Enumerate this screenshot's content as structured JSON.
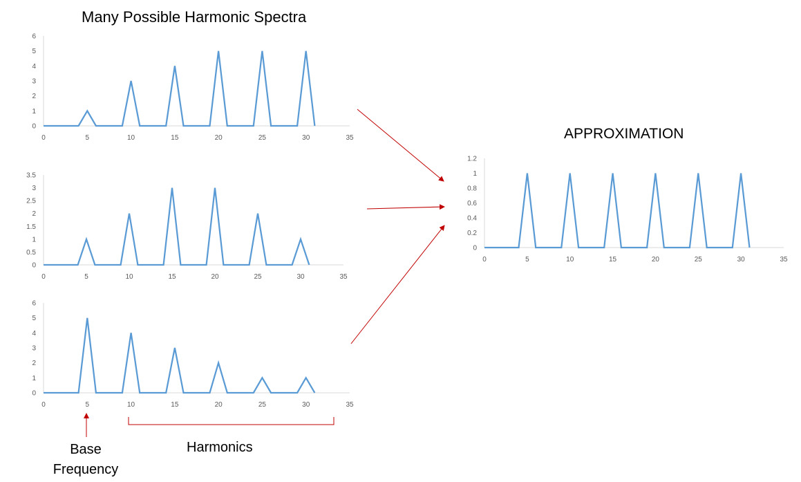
{
  "title": "Many Possible Harmonic Spectra",
  "approx_title": "APPROXIMATION",
  "annotations": {
    "base_frequency": "Base Frequency",
    "harmonics": "Harmonics"
  },
  "colors": {
    "line": "#5B9BD5",
    "axis": "#D9D9D9",
    "arrow": "#C00000",
    "text": "#595959"
  },
  "chart_data": [
    {
      "type": "line",
      "title": "",
      "xlim": [
        0,
        35
      ],
      "ylim": [
        0,
        6
      ],
      "xticks": [
        0,
        5,
        10,
        15,
        20,
        25,
        30,
        35
      ],
      "yticks": [
        0,
        1,
        2,
        3,
        4,
        5,
        6
      ],
      "x": [
        0,
        4,
        5,
        6,
        9,
        10,
        11,
        14,
        15,
        16,
        19,
        20,
        21,
        24,
        25,
        26,
        29,
        30,
        31
      ],
      "series": [
        {
          "values": [
            0,
            0,
            1,
            0,
            0,
            3,
            0,
            0,
            4,
            0,
            0,
            5,
            0,
            0,
            5,
            0,
            0,
            5,
            0
          ]
        }
      ]
    },
    {
      "type": "line",
      "title": "",
      "xlim": [
        0,
        35
      ],
      "ylim": [
        0,
        3.5
      ],
      "xticks": [
        0,
        5,
        10,
        15,
        20,
        25,
        30,
        35
      ],
      "yticks": [
        0,
        0.5,
        1,
        1.5,
        2,
        2.5,
        3,
        3.5
      ],
      "x": [
        0,
        4,
        5,
        6,
        9,
        10,
        11,
        14,
        15,
        16,
        19,
        20,
        21,
        24,
        25,
        26,
        29,
        30,
        31
      ],
      "series": [
        {
          "values": [
            0,
            0,
            1,
            0,
            0,
            2,
            0,
            0,
            3,
            0,
            0,
            3,
            0,
            0,
            2,
            0,
            0,
            1,
            0
          ]
        }
      ]
    },
    {
      "type": "line",
      "title": "",
      "xlim": [
        0,
        35
      ],
      "ylim": [
        0,
        6
      ],
      "xticks": [
        0,
        5,
        10,
        15,
        20,
        25,
        30,
        35
      ],
      "yticks": [
        0,
        1,
        2,
        3,
        4,
        5,
        6
      ],
      "x": [
        0,
        4,
        5,
        6,
        9,
        10,
        11,
        14,
        15,
        16,
        19,
        20,
        21,
        24,
        25,
        26,
        29,
        30,
        31
      ],
      "series": [
        {
          "values": [
            0,
            0,
            5,
            0,
            0,
            4,
            0,
            0,
            3,
            0,
            0,
            2,
            0,
            0,
            1,
            0,
            0,
            1,
            0
          ]
        }
      ]
    },
    {
      "type": "line",
      "title": "APPROXIMATION",
      "xlim": [
        0,
        35
      ],
      "ylim": [
        0,
        1.2
      ],
      "xticks": [
        0,
        5,
        10,
        15,
        20,
        25,
        30,
        35
      ],
      "yticks": [
        0,
        0.2,
        0.4,
        0.6,
        0.8,
        1,
        1.2
      ],
      "x": [
        0,
        4,
        5,
        6,
        9,
        10,
        11,
        14,
        15,
        16,
        19,
        20,
        21,
        24,
        25,
        26,
        29,
        30,
        31
      ],
      "series": [
        {
          "values": [
            0,
            0,
            1,
            0,
            0,
            1,
            0,
            0,
            1,
            0,
            0,
            1,
            0,
            0,
            1,
            0,
            0,
            1,
            0
          ]
        }
      ]
    }
  ]
}
